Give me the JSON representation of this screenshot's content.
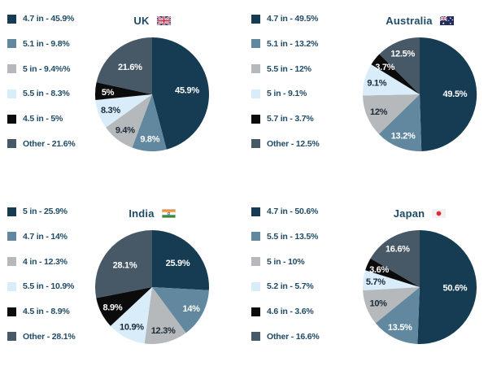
{
  "page": {
    "background": "#ffffff"
  },
  "colors": {
    "legend_text": "#1e4b66",
    "title_text": "#1e4b66",
    "label_dark": "#1b2935",
    "label_light": "#ffffff",
    "palette": {
      "navy": "#153c52",
      "steel": "#61889f",
      "gray": "#b6b9bb",
      "lightblue": "#d8edf9",
      "black": "#0b0b0b",
      "slate": "#475866"
    }
  },
  "chart_data": [
    {
      "type": "pie",
      "title": "UK",
      "flag": "uk",
      "legend_position": "left",
      "slices": [
        {
          "size": "4.7 in",
          "value": 45.9,
          "label": "45.9%",
          "legend": "4.7 in - 45.9%",
          "color": "navy",
          "label_tone": "light"
        },
        {
          "size": "5.1 in",
          "value": 9.8,
          "label": "9.8%",
          "legend": "5.1 in - 9.8%",
          "color": "steel",
          "label_tone": "light"
        },
        {
          "size": "5 in",
          "value": 9.4,
          "label": "9.4%",
          "legend": "5 in - 9.4%%",
          "color": "gray",
          "label_tone": "dark"
        },
        {
          "size": "5.5 in",
          "value": 8.3,
          "label": "8.3%",
          "legend": "5.5 in - 8.3%",
          "color": "lightblue",
          "label_tone": "dark"
        },
        {
          "size": "4.5 in",
          "value": 5,
          "label": "5%",
          "legend": "4.5 in - 5%",
          "color": "black",
          "label_tone": "light"
        },
        {
          "size": "Other",
          "value": 21.6,
          "label": "21.6%",
          "legend": "Other - 21.6%",
          "color": "slate",
          "label_tone": "light"
        }
      ]
    },
    {
      "type": "pie",
      "title": "Australia",
      "flag": "australia",
      "legend_position": "left",
      "slices": [
        {
          "size": "4.7 in",
          "value": 49.5,
          "label": "49.5%",
          "legend": "4.7 in - 49.5%",
          "color": "navy",
          "label_tone": "light"
        },
        {
          "size": "5.1 in",
          "value": 13.2,
          "label": "13.2%",
          "legend": "5.1 in - 13.2%",
          "color": "steel",
          "label_tone": "light"
        },
        {
          "size": "5.5 in",
          "value": 12,
          "label": "12%",
          "legend": "5.5 in - 12%",
          "color": "gray",
          "label_tone": "dark"
        },
        {
          "size": "5 in",
          "value": 9.1,
          "label": "9.1%",
          "legend": "5 in - 9.1%",
          "color": "lightblue",
          "label_tone": "dark"
        },
        {
          "size": "5.7 in",
          "value": 3.7,
          "label": "3.7%",
          "legend": "5.7 in - 3.7%",
          "color": "black",
          "label_tone": "light"
        },
        {
          "size": "Other",
          "value": 12.5,
          "label": "12.5%",
          "legend": "Other - 12.5%",
          "color": "slate",
          "label_tone": "light"
        }
      ]
    },
    {
      "type": "pie",
      "title": "India",
      "flag": "india",
      "legend_position": "left",
      "slices": [
        {
          "size": "5 in",
          "value": 25.9,
          "label": "25.9%",
          "legend": "5 in - 25.9%",
          "color": "navy",
          "label_tone": "light"
        },
        {
          "size": "4.7 in",
          "value": 14,
          "label": "14%",
          "legend": "4.7 in - 14%",
          "color": "steel",
          "label_tone": "light"
        },
        {
          "size": "4 in",
          "value": 12.3,
          "label": "12.3%",
          "legend": "4 in - 12.3%",
          "color": "gray",
          "label_tone": "dark"
        },
        {
          "size": "5.5 in",
          "value": 10.9,
          "label": "10.9%",
          "legend": "5.5 in - 10.9%",
          "color": "lightblue",
          "label_tone": "dark"
        },
        {
          "size": "4.5 in",
          "value": 8.9,
          "label": "8.9%",
          "legend": "4.5 in - 8.9%",
          "color": "black",
          "label_tone": "light"
        },
        {
          "size": "Other",
          "value": 28.1,
          "label": "28.1%",
          "legend": "Other - 28.1%",
          "color": "slate",
          "label_tone": "light"
        }
      ]
    },
    {
      "type": "pie",
      "title": "Japan",
      "flag": "japan",
      "legend_position": "left",
      "slices": [
        {
          "size": "4.7 in",
          "value": 50.6,
          "label": "50.6%",
          "legend": "4.7 in - 50.6%",
          "color": "navy",
          "label_tone": "light"
        },
        {
          "size": "5.5 in",
          "value": 13.5,
          "label": "13.5%",
          "legend": "5.5 in - 13.5%",
          "color": "steel",
          "label_tone": "light"
        },
        {
          "size": "5 in",
          "value": 10,
          "label": "10%",
          "legend": "5 in - 10%",
          "color": "gray",
          "label_tone": "dark"
        },
        {
          "size": "5.2 in",
          "value": 5.7,
          "label": "5.7%",
          "legend": "5.2 in - 5.7%",
          "color": "lightblue",
          "label_tone": "dark"
        },
        {
          "size": "4.6 in",
          "value": 3.6,
          "label": "3.6%",
          "legend": "4.6 in - 3.6%",
          "color": "black",
          "label_tone": "light"
        },
        {
          "size": "Other",
          "value": 16.6,
          "label": "16.6%",
          "legend": "Other - 16.6%",
          "color": "slate",
          "label_tone": "light"
        }
      ]
    }
  ]
}
